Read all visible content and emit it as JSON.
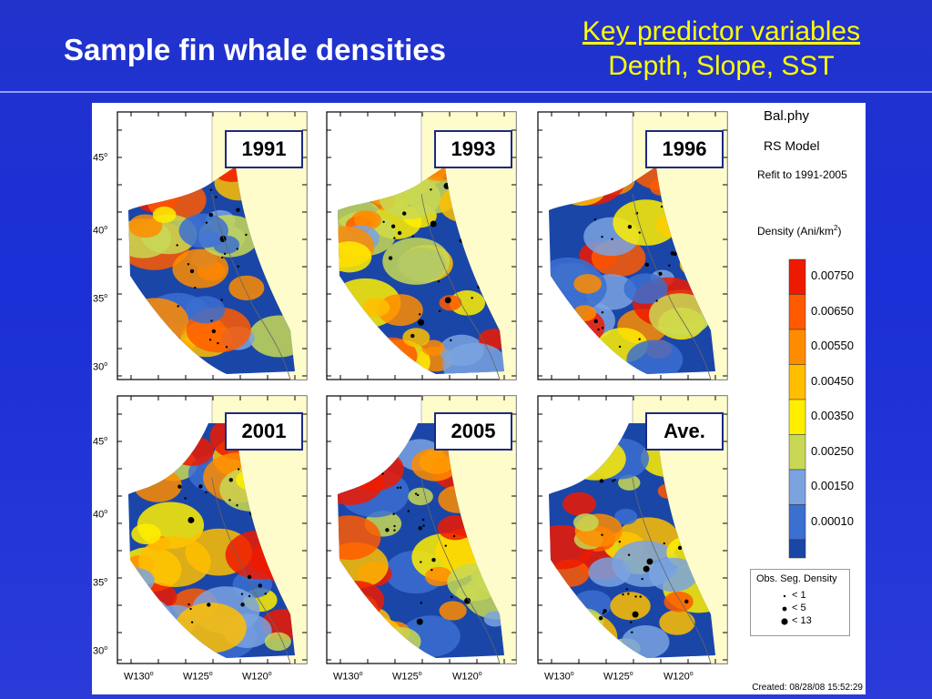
{
  "slide": {
    "title": "Sample fin whale densities",
    "key_heading": "Key predictor variables",
    "key_vars": "Depth, Slope, SST"
  },
  "legend": {
    "species": "Bal.phy",
    "model": "RS Model",
    "refit": "Refit to 1991-2005",
    "density_label": "Density (Ani/km",
    "density_sup": "2",
    "density_close": ")",
    "colorbar": [
      {
        "label": "0.00750",
        "color": "#ee1a00"
      },
      {
        "label": "0.00650",
        "color": "#ff5a00"
      },
      {
        "label": "0.00550",
        "color": "#ff8c00"
      },
      {
        "label": "0.00450",
        "color": "#ffbe00"
      },
      {
        "label": "0.00350",
        "color": "#ffee00"
      },
      {
        "label": "0.00250",
        "color": "#c8d855"
      },
      {
        "label": "0.00150",
        "color": "#7aa3e0"
      },
      {
        "label": "0.00010",
        "color": "#3b6fd0"
      }
    ],
    "colorbar_low": "#1a46a8",
    "obs_title": "Obs. Seg. Density",
    "obs_items": [
      "< 1",
      "< 5",
      "< 13"
    ]
  },
  "panels": [
    {
      "label": "1991"
    },
    {
      "label": "1993"
    },
    {
      "label": "1996"
    },
    {
      "label": "2001"
    },
    {
      "label": "2005"
    },
    {
      "label": "Ave."
    }
  ],
  "axes": {
    "lat_ticks": [
      "45",
      "40",
      "35",
      "30"
    ],
    "lon_ticks": [
      "W130",
      "W125",
      "W120"
    ],
    "degree": "o"
  },
  "created": "Created: 08/28/08  15:52:29"
}
